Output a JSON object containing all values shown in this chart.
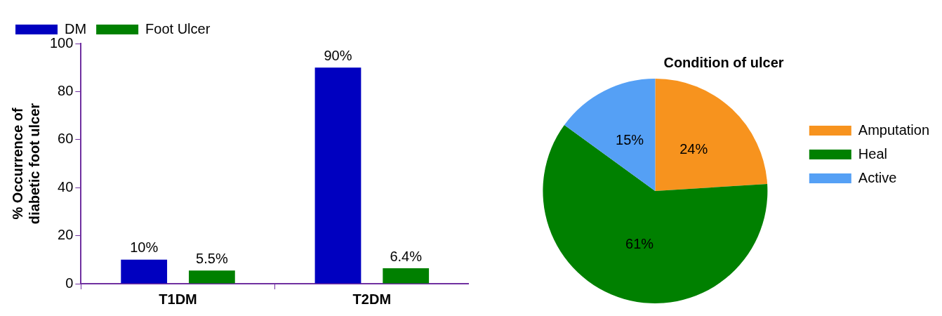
{
  "chart_data": [
    {
      "type": "bar",
      "ylabel": "% Occurrence of diabetic foot ulcer",
      "categories": [
        "T1DM",
        "T2DM"
      ],
      "series": [
        {
          "name": "DM",
          "color": "#0000c0",
          "values": [
            10,
            90
          ],
          "value_labels": [
            "10%",
            "90%"
          ]
        },
        {
          "name": "Foot Ulcer",
          "color": "#008000",
          "values": [
            5.5,
            6.4
          ],
          "value_labels": [
            "5.5%",
            "6.4%"
          ]
        }
      ],
      "ylim": [
        0,
        100
      ],
      "yticks": [
        0,
        20,
        40,
        60,
        80,
        100
      ],
      "grid": false,
      "legend": "top left"
    },
    {
      "type": "pie",
      "title": "Condition of ulcer",
      "categories": [
        "Amputation",
        "Heal",
        "Active"
      ],
      "values": [
        24,
        61,
        15
      ],
      "colors": [
        "#f7931e",
        "#008000",
        "#55a0f5"
      ],
      "value_labels": [
        "24%",
        "61%",
        "15%"
      ],
      "legend": "right"
    }
  ]
}
